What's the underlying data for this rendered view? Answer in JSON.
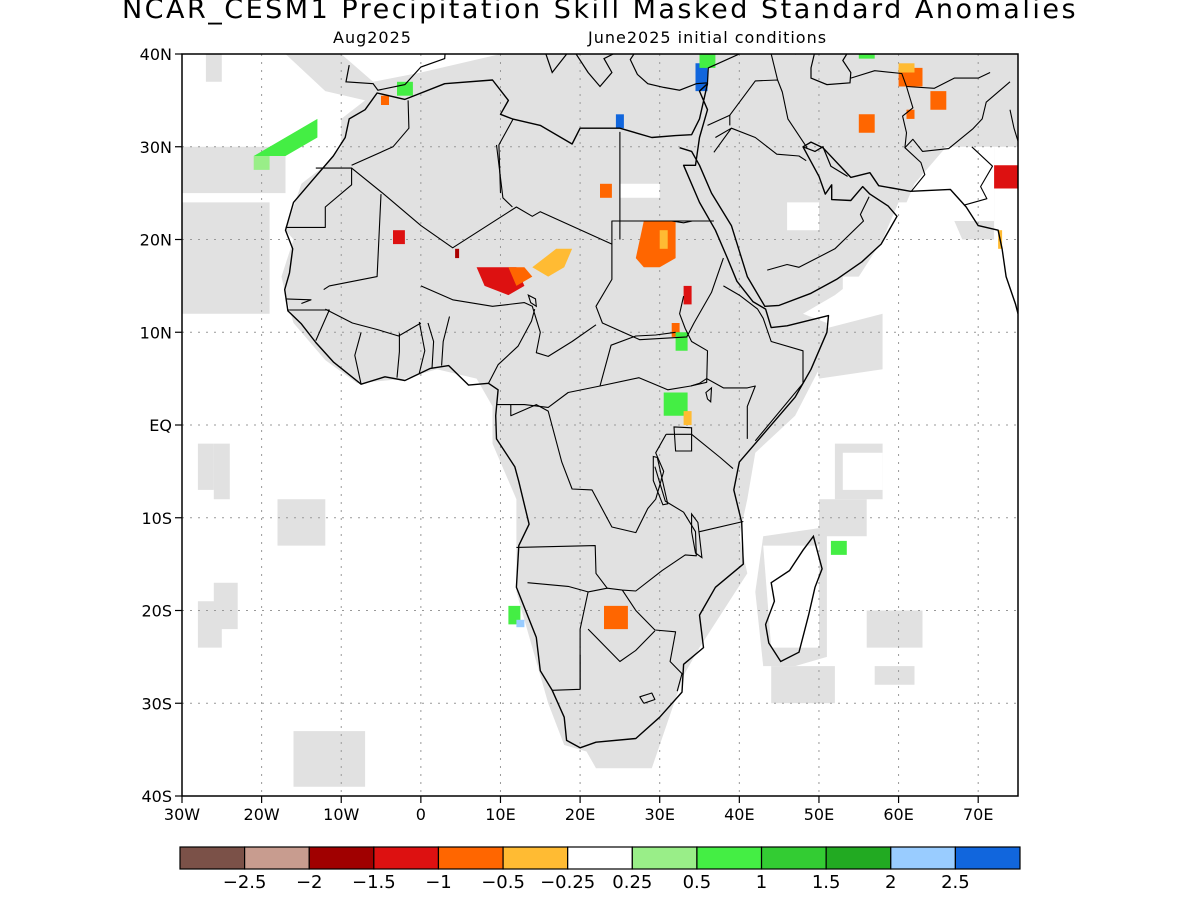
{
  "title": "NCAR_CESM1 Precipitation Skill Masked Standard Anomalies",
  "subtitle_left": "Aug2025",
  "subtitle_right": "June2025 initial conditions",
  "map": {
    "lon_range": [
      -30,
      75
    ],
    "lat_range": [
      -40,
      40
    ],
    "lat_ticks": [
      {
        "value": 40,
        "label": "40N"
      },
      {
        "value": 30,
        "label": "30N"
      },
      {
        "value": 20,
        "label": "20N"
      },
      {
        "value": 10,
        "label": "10N"
      },
      {
        "value": 0,
        "label": "EQ"
      },
      {
        "value": -10,
        "label": "10S"
      },
      {
        "value": -20,
        "label": "20S"
      },
      {
        "value": -30,
        "label": "30S"
      },
      {
        "value": -40,
        "label": "40S"
      }
    ],
    "lon_ticks": [
      {
        "value": -30,
        "label": "30W"
      },
      {
        "value": -20,
        "label": "20W"
      },
      {
        "value": -10,
        "label": "10W"
      },
      {
        "value": 0,
        "label": "0"
      },
      {
        "value": 10,
        "label": "10E"
      },
      {
        "value": 20,
        "label": "20E"
      },
      {
        "value": 30,
        "label": "30E"
      },
      {
        "value": 40,
        "label": "40E"
      },
      {
        "value": 50,
        "label": "50E"
      },
      {
        "value": 60,
        "label": "60E"
      },
      {
        "value": 70,
        "label": "70E"
      }
    ],
    "mask_color": "#e1e1e1",
    "anomaly_regions": [
      {
        "name": "sudan-darfur",
        "color": "#ff6600",
        "pts": [
          [
            28,
            22
          ],
          [
            32,
            22
          ],
          [
            32,
            18
          ],
          [
            30,
            17
          ],
          [
            28,
            17
          ],
          [
            27,
            18
          ]
        ]
      },
      {
        "name": "sudan-inner",
        "color": "#ffbb33",
        "pts": [
          [
            30,
            21
          ],
          [
            31,
            21
          ],
          [
            31,
            19
          ],
          [
            30,
            19
          ]
        ]
      },
      {
        "name": "chad-lake",
        "color": "#dd1111",
        "pts": [
          [
            7,
            17
          ],
          [
            12,
            17
          ],
          [
            13,
            15
          ],
          [
            11,
            14
          ],
          [
            8,
            15
          ]
        ]
      },
      {
        "name": "chad-east",
        "color": "#ff6600",
        "pts": [
          [
            11,
            17
          ],
          [
            13,
            17
          ],
          [
            14,
            16
          ],
          [
            12,
            15
          ]
        ]
      },
      {
        "name": "chad-yellow",
        "color": "#ffbb33",
        "pts": [
          [
            14,
            17
          ],
          [
            17,
            19
          ],
          [
            19,
            19
          ],
          [
            18,
            17
          ],
          [
            16,
            16
          ]
        ]
      },
      {
        "name": "mali",
        "color": "#dd1111",
        "pts": [
          [
            -3.5,
            21
          ],
          [
            -2,
            21
          ],
          [
            -2,
            19.5
          ],
          [
            -3.5,
            19.5
          ]
        ]
      },
      {
        "name": "niger-dot",
        "color": "#aa0000",
        "pts": [
          [
            4.3,
            19
          ],
          [
            4.8,
            19
          ],
          [
            4.8,
            18
          ],
          [
            4.3,
            18
          ]
        ]
      },
      {
        "name": "libya",
        "color": "#ff6600",
        "pts": [
          [
            22.5,
            26
          ],
          [
            24,
            26
          ],
          [
            24,
            24.5
          ],
          [
            22.5,
            24.5
          ]
        ]
      },
      {
        "name": "south-sudan",
        "color": "#dd1111",
        "pts": [
          [
            33,
            15
          ],
          [
            34,
            15
          ],
          [
            34,
            13
          ],
          [
            33,
            13
          ]
        ]
      },
      {
        "name": "uganda-orange",
        "color": "#ff6600",
        "pts": [
          [
            31.5,
            11
          ],
          [
            32.5,
            11
          ],
          [
            32.5,
            9.5
          ],
          [
            31.5,
            9.5
          ]
        ]
      },
      {
        "name": "uganda-green",
        "color": "#44ee44",
        "pts": [
          [
            32,
            10
          ],
          [
            33.5,
            10
          ],
          [
            33.5,
            8
          ],
          [
            32,
            8
          ]
        ]
      },
      {
        "name": "lake-victoria-green",
        "color": "#44ee44",
        "pts": [
          [
            30.5,
            3.5
          ],
          [
            33.5,
            3.5
          ],
          [
            33.5,
            1
          ],
          [
            30.5,
            1
          ]
        ]
      },
      {
        "name": "lake-victoria-yellow",
        "color": "#ffbb33",
        "pts": [
          [
            33,
            1.5
          ],
          [
            34,
            1.5
          ],
          [
            34,
            0
          ],
          [
            33,
            0
          ]
        ]
      },
      {
        "name": "botswana",
        "color": "#ff6600",
        "pts": [
          [
            23,
            -19.5
          ],
          [
            26,
            -19.5
          ],
          [
            26,
            -22
          ],
          [
            23,
            -22
          ]
        ]
      },
      {
        "name": "angola-green",
        "color": "#44ee44",
        "pts": [
          [
            11,
            -19.5
          ],
          [
            12.5,
            -19.5
          ],
          [
            12.5,
            -21.5
          ],
          [
            11,
            -21.5
          ]
        ]
      },
      {
        "name": "angola-blue",
        "color": "#99ccff",
        "pts": [
          [
            12,
            -21
          ],
          [
            13,
            -21
          ],
          [
            13,
            -21.8
          ],
          [
            12,
            -21.8
          ]
        ]
      },
      {
        "name": "madagascar-east",
        "color": "#44ee44",
        "pts": [
          [
            51.5,
            -12.5
          ],
          [
            53.5,
            -12.5
          ],
          [
            53.5,
            -14
          ],
          [
            51.5,
            -14
          ]
        ]
      },
      {
        "name": "morocco",
        "color": "#44ee44",
        "pts": [
          [
            -21,
            29
          ],
          [
            -17,
            31
          ],
          [
            -13,
            33
          ],
          [
            -13,
            31
          ],
          [
            -17,
            29
          ]
        ]
      },
      {
        "name": "morocco-coast",
        "color": "#99ee88",
        "pts": [
          [
            -21,
            29
          ],
          [
            -19,
            29
          ],
          [
            -19,
            27.5
          ],
          [
            -21,
            27.5
          ]
        ]
      },
      {
        "name": "algeria-north",
        "color": "#44ee44",
        "pts": [
          [
            -3,
            37
          ],
          [
            -1,
            37
          ],
          [
            -1,
            35.5
          ],
          [
            -3,
            35.5
          ]
        ]
      },
      {
        "name": "algeria-orange",
        "color": "#ff6600",
        "pts": [
          [
            -5,
            35.5
          ],
          [
            -4,
            35.5
          ],
          [
            -4,
            34.5
          ],
          [
            -5,
            34.5
          ]
        ]
      },
      {
        "name": "libya-coast",
        "color": "#1166dd",
        "pts": [
          [
            24.5,
            33.5
          ],
          [
            25.5,
            33.5
          ],
          [
            25.5,
            32
          ],
          [
            24.5,
            32
          ]
        ]
      },
      {
        "name": "levant-blue",
        "color": "#1166dd",
        "pts": [
          [
            34.5,
            39
          ],
          [
            36,
            39
          ],
          [
            36,
            36
          ],
          [
            34.5,
            36
          ]
        ]
      },
      {
        "name": "levant-green",
        "color": "#44ee44",
        "pts": [
          [
            35,
            40
          ],
          [
            37,
            40
          ],
          [
            37,
            38.5
          ],
          [
            35,
            38.5
          ]
        ]
      },
      {
        "name": "iran-orange",
        "color": "#ff6600",
        "pts": [
          [
            60,
            38.5
          ],
          [
            63,
            38.5
          ],
          [
            63,
            36.5
          ],
          [
            60,
            36.5
          ]
        ]
      },
      {
        "name": "iran-yellow",
        "color": "#ffbb33",
        "pts": [
          [
            60,
            39
          ],
          [
            62,
            39
          ],
          [
            62,
            38
          ],
          [
            60,
            38
          ]
        ]
      },
      {
        "name": "iran-east",
        "color": "#ff6600",
        "pts": [
          [
            64,
            36
          ],
          [
            66,
            36
          ],
          [
            66,
            34
          ],
          [
            64,
            34
          ]
        ]
      },
      {
        "name": "iran-south",
        "color": "#ff6600",
        "pts": [
          [
            61,
            34
          ],
          [
            62,
            34
          ],
          [
            62,
            33
          ],
          [
            61,
            33
          ]
        ]
      },
      {
        "name": "iran-center",
        "color": "#ff6600",
        "pts": [
          [
            55,
            33.5
          ],
          [
            57,
            33.5
          ],
          [
            57,
            31.5
          ],
          [
            55,
            31.5
          ]
        ]
      },
      {
        "name": "caspian-green",
        "color": "#44ee44",
        "pts": [
          [
            55,
            40
          ],
          [
            57,
            40
          ],
          [
            57,
            39.5
          ],
          [
            55,
            39.5
          ]
        ]
      },
      {
        "name": "india-north",
        "color": "#dd1111",
        "pts": [
          [
            72,
            28
          ],
          [
            75,
            28
          ],
          [
            75,
            25.5
          ],
          [
            72,
            25.5
          ]
        ]
      },
      {
        "name": "india-yellow",
        "color": "#ffbb33",
        "pts": [
          [
            72.5,
            21
          ],
          [
            73,
            21
          ],
          [
            73,
            19
          ],
          [
            72.5,
            19
          ]
        ]
      }
    ]
  },
  "colorbar": {
    "colors": [
      "#7b5148",
      "#c89c8f",
      "#a00000",
      "#dd1111",
      "#ff6600",
      "#ffbb33",
      "#ffffff",
      "#99ee88",
      "#44ee44",
      "#33cc33",
      "#22aa22",
      "#99ccff",
      "#1166dd"
    ],
    "labels": [
      "−2.5",
      "−2",
      "−1.5",
      "−1",
      "−0.5",
      "−0.25",
      "0.25",
      "0.5",
      "1",
      "1.5",
      "2",
      "2.5"
    ]
  }
}
